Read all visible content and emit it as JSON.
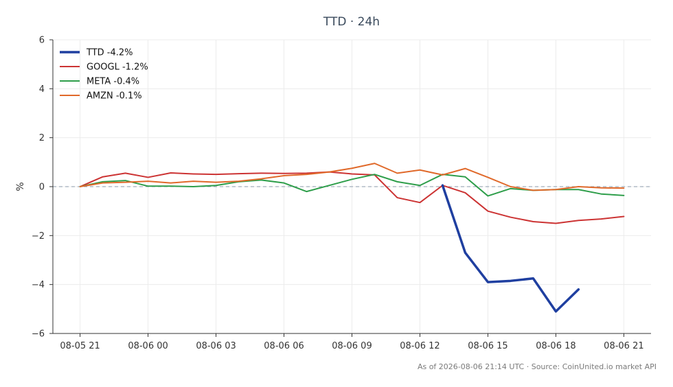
{
  "chart_data": {
    "type": "line",
    "title": "TTD · 24h",
    "ylabel": "%",
    "xlabel": "",
    "ylim": [
      -6,
      6
    ],
    "yticks": [
      -6,
      -4,
      -2,
      0,
      2,
      4,
      6
    ],
    "ytick_labels": [
      "−6",
      "−4",
      "−2",
      "0",
      "2",
      "4",
      "6"
    ],
    "x_hours": [
      0,
      1,
      2,
      3,
      4,
      5,
      6,
      7,
      8,
      9,
      10,
      11,
      12,
      13,
      14,
      15,
      16,
      17,
      18,
      19,
      20,
      21,
      22,
      23,
      24
    ],
    "xlim": [
      -1.2,
      25.2
    ],
    "xticks": [
      0,
      3,
      6,
      9,
      12,
      15,
      18,
      21,
      24
    ],
    "xtick_labels": [
      "08-05 21",
      "08-06 00",
      "08-06 03",
      "08-06 06",
      "08-06 09",
      "08-06 12",
      "08-06 15",
      "08-06 18",
      "08-06 21"
    ],
    "grid": true,
    "zero_line": true,
    "legend_position": "top-left",
    "series": [
      {
        "name": "TTD -4.2%",
        "color": "#1f3fa0",
        "emphasis": true,
        "values": [
          null,
          null,
          null,
          null,
          null,
          null,
          null,
          null,
          null,
          null,
          null,
          null,
          null,
          null,
          null,
          null,
          0.05,
          -2.7,
          -3.9,
          -3.85,
          -3.75,
          -5.1,
          -4.2,
          null,
          null
        ]
      },
      {
        "name": "GOOGL -1.2%",
        "color": "#cc3333",
        "emphasis": false,
        "values": [
          0.0,
          0.4,
          0.55,
          0.38,
          0.56,
          0.52,
          0.5,
          0.53,
          0.55,
          0.54,
          0.55,
          0.6,
          0.52,
          0.48,
          -0.45,
          -0.65,
          0.05,
          -0.25,
          -1.0,
          -1.25,
          -1.43,
          -1.5,
          -1.38,
          -1.32,
          -1.22
        ]
      },
      {
        "name": "META -0.4%",
        "color": "#2e9e4a",
        "emphasis": false,
        "values": [
          0.0,
          0.2,
          0.25,
          0.02,
          0.02,
          0.0,
          0.05,
          0.2,
          0.27,
          0.15,
          -0.2,
          0.05,
          0.3,
          0.5,
          0.2,
          0.05,
          0.5,
          0.4,
          -0.38,
          -0.08,
          -0.15,
          -0.12,
          -0.12,
          -0.3,
          -0.36
        ]
      },
      {
        "name": "AMZN -0.1%",
        "color": "#e0692a",
        "emphasis": false,
        "values": [
          0.0,
          0.15,
          0.18,
          0.22,
          0.15,
          0.22,
          0.18,
          0.22,
          0.32,
          0.45,
          0.5,
          0.6,
          0.75,
          0.95,
          0.55,
          0.68,
          0.48,
          0.74,
          0.38,
          0.0,
          -0.15,
          -0.12,
          0.0,
          -0.05,
          -0.06
        ]
      }
    ],
    "footer": "As of 2026-08-06 21:14 UTC · Source: CoinUnited.io market API"
  }
}
